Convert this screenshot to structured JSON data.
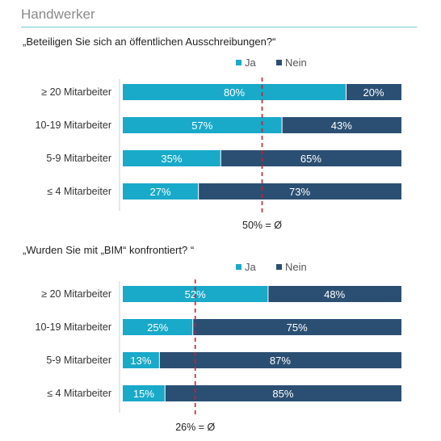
{
  "header": {
    "title": "Handwerker"
  },
  "colors": {
    "ja": "#19a9c9",
    "nein": "#2b4f73",
    "avg_line": "#cc1f2a",
    "rule": "#6fc7d4"
  },
  "chart_data": [
    {
      "type": "bar",
      "orientation": "horizontal-stacked-100",
      "title": "„Beteiligen Sie sich an öffentlichen Ausschreibungen?“",
      "legend": [
        "Ja",
        "Nein"
      ],
      "categories": [
        "≥ 20 Mitarbeiter",
        "10-19 Mitarbeiter",
        "5-9 Mitarbeiter",
        "≤ 4 Mitarbeiter"
      ],
      "series": [
        {
          "name": "Ja",
          "values": [
            80,
            57,
            35,
            27
          ],
          "labels": [
            "80%",
            "57%",
            "35%",
            "27%"
          ]
        },
        {
          "name": "Nein",
          "values": [
            20,
            43,
            65,
            73
          ],
          "labels": [
            "20%",
            "43%",
            "65%",
            "73%"
          ]
        }
      ],
      "average": 50,
      "average_label": "50% = Ø",
      "xlim": [
        0,
        100
      ]
    },
    {
      "type": "bar",
      "orientation": "horizontal-stacked-100",
      "title": "„Wurden Sie mit „BIM“ konfrontiert? “",
      "legend": [
        "Ja",
        "Nein"
      ],
      "categories": [
        "≥ 20 Mitarbeiter",
        "10-19 Mitarbeiter",
        "5-9 Mitarbeiter",
        "≤ 4 Mitarbeiter"
      ],
      "series": [
        {
          "name": "Ja",
          "values": [
            52,
            25,
            13,
            15
          ],
          "labels": [
            "52%",
            "25%",
            "13%",
            "15%"
          ]
        },
        {
          "name": "Nein",
          "values": [
            48,
            75,
            87,
            85
          ],
          "labels": [
            "48%",
            "75%",
            "87%",
            "85%"
          ]
        }
      ],
      "average": 26,
      "average_label": "26% = Ø",
      "xlim": [
        0,
        100
      ]
    }
  ]
}
